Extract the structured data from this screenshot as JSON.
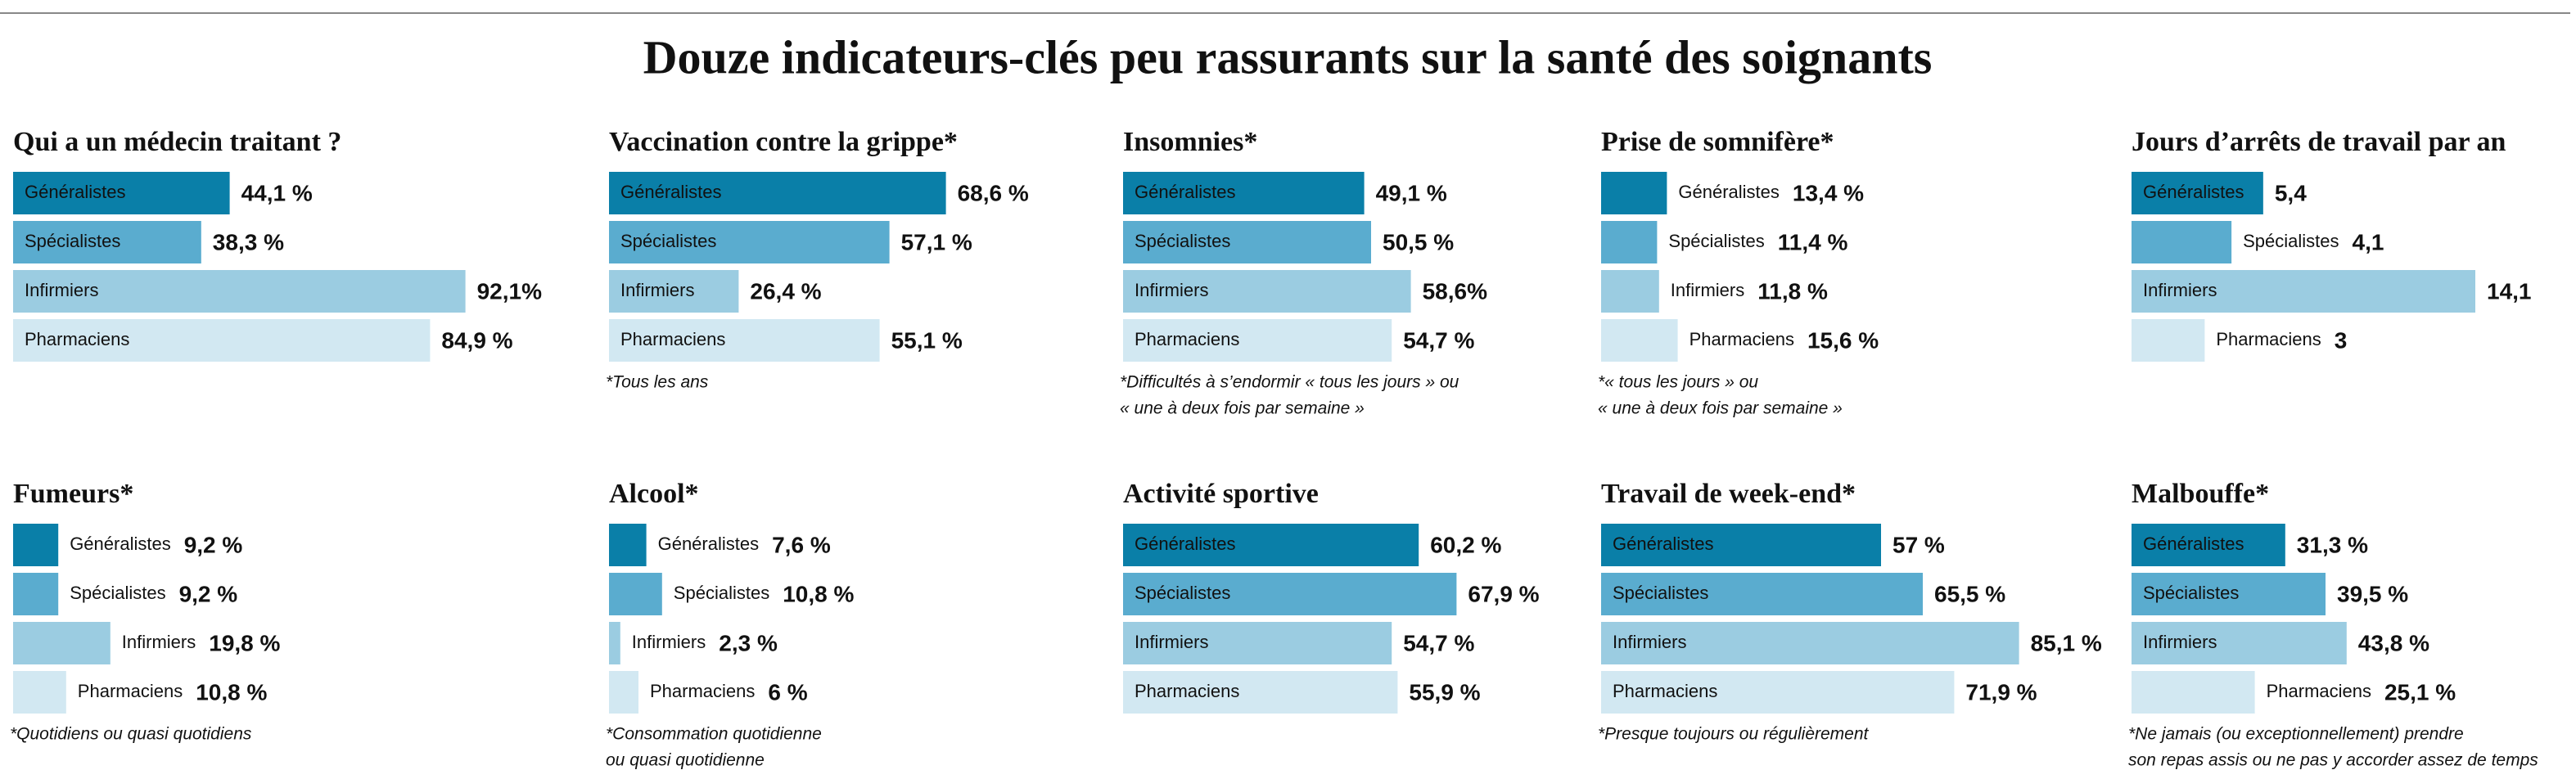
{
  "title": "Douze indicateurs-clés peu rassurants sur la santé des soignants",
  "chart_data": [
    {
      "type": "bar",
      "orientation": "horizontal",
      "title": "Qui a un médecin traitant ?",
      "categories": [
        "Généralistes",
        "Spécialistes",
        "Infirmiers",
        "Pharmaciens"
      ],
      "values": [
        44.1,
        38.3,
        92.1,
        84.9
      ],
      "value_labels": [
        "44,1 %",
        "38,3 %",
        "92,1%",
        "84,9 %"
      ],
      "colors": [
        "#0a7fa8",
        "#5aaccf",
        "#9bcce1",
        "#d2e8f2"
      ]
    },
    {
      "type": "bar",
      "orientation": "horizontal",
      "title": "Vaccination contre la grippe*",
      "categories": [
        "Généralistes",
        "Spécialistes",
        "Infirmiers",
        "Pharmaciens"
      ],
      "values": [
        68.6,
        57.1,
        26.4,
        55.1
      ],
      "value_labels": [
        "68,6 %",
        "57,1 %",
        "26,4 %",
        "55,1 %"
      ],
      "colors": [
        "#0a7fa8",
        "#5aaccf",
        "#9bcce1",
        "#d2e8f2"
      ],
      "note": [
        "*Tous les ans"
      ]
    },
    {
      "type": "bar",
      "orientation": "horizontal",
      "title": "Insomnies*",
      "categories": [
        "Généralistes",
        "Spécialistes",
        "Infirmiers",
        "Pharmaciens"
      ],
      "values": [
        49.1,
        50.5,
        58.6,
        54.7
      ],
      "value_labels": [
        "49,1 %",
        "50,5 %",
        "58,6%",
        "54,7 %"
      ],
      "colors": [
        "#0a7fa8",
        "#5aaccf",
        "#9bcce1",
        "#d2e8f2"
      ],
      "note": [
        "*Difficultés à s’endormir « tous les jours » ou",
        " « une à deux fois par semaine »"
      ]
    },
    {
      "type": "bar",
      "orientation": "horizontal",
      "title": "Prise de somnifère*",
      "categories": [
        "Généralistes",
        "Spécialistes",
        "Infirmiers",
        "Pharmaciens"
      ],
      "values": [
        13.4,
        11.4,
        11.8,
        15.6
      ],
      "value_labels": [
        "13,4 %",
        "11,4 %",
        "11,8 %",
        "15,6 %"
      ],
      "colors": [
        "#0a7fa8",
        "#5aaccf",
        "#9bcce1",
        "#d2e8f2"
      ],
      "note": [
        "*« tous les jours » ou",
        " « une à deux fois par semaine »"
      ]
    },
    {
      "type": "bar",
      "orientation": "horizontal",
      "title": "Jours d’arrêts de travail par an",
      "categories": [
        "Généralistes",
        "Spécialistes",
        "Infirmiers",
        "Pharmaciens"
      ],
      "values": [
        5.4,
        4.1,
        14.1,
        3
      ],
      "value_labels": [
        "5,4",
        "4,1",
        "14,1",
        "3"
      ],
      "colors": [
        "#0a7fa8",
        "#5aaccf",
        "#9bcce1",
        "#d2e8f2"
      ]
    },
    {
      "type": "bar",
      "orientation": "horizontal",
      "title": "Fumeurs*",
      "categories": [
        "Généralistes",
        "Spécialistes",
        "Infirmiers",
        "Pharmaciens"
      ],
      "values": [
        9.2,
        9.2,
        19.8,
        10.8
      ],
      "value_labels": [
        "9,2 %",
        "9,2 %",
        "19,8 %",
        "10,8 %"
      ],
      "colors": [
        "#0a7fa8",
        "#5aaccf",
        "#9bcce1",
        "#d2e8f2"
      ],
      "note": [
        "*Quotidiens ou quasi quotidiens"
      ]
    },
    {
      "type": "bar",
      "orientation": "horizontal",
      "title": "Alcool*",
      "categories": [
        "Généralistes",
        "Spécialistes",
        "Infirmiers",
        "Pharmaciens"
      ],
      "values": [
        7.6,
        10.8,
        2.3,
        6
      ],
      "value_labels": [
        "7,6 %",
        "10,8 %",
        "2,3 %",
        "6 %"
      ],
      "colors": [
        "#0a7fa8",
        "#5aaccf",
        "#9bcce1",
        "#d2e8f2"
      ],
      "note": [
        "*Consommation quotidienne",
        " ou quasi quotidienne"
      ]
    },
    {
      "type": "bar",
      "orientation": "horizontal",
      "title": "Activité sportive",
      "categories": [
        "Généralistes",
        "Spécialistes",
        "Infirmiers",
        "Pharmaciens"
      ],
      "values": [
        60.2,
        67.9,
        54.7,
        55.9
      ],
      "value_labels": [
        "60,2 %",
        "67,9 %",
        "54,7 %",
        "55,9 %"
      ],
      "colors": [
        "#0a7fa8",
        "#5aaccf",
        "#9bcce1",
        "#d2e8f2"
      ]
    },
    {
      "type": "bar",
      "orientation": "horizontal",
      "title": "Travail de week-end*",
      "categories": [
        "Généralistes",
        "Spécialistes",
        "Infirmiers",
        "Pharmaciens"
      ],
      "values": [
        57,
        65.5,
        85.1,
        71.9
      ],
      "value_labels": [
        "57 %",
        "65,5 %",
        "85,1 %",
        "71,9 %"
      ],
      "colors": [
        "#0a7fa8",
        "#5aaccf",
        "#9bcce1",
        "#d2e8f2"
      ],
      "note": [
        "*Presque toujours ou régulièrement"
      ]
    },
    {
      "type": "bar",
      "orientation": "horizontal",
      "title": "Malbouffe*",
      "categories": [
        "Généralistes",
        "Spécialistes",
        "Infirmiers",
        "Pharmaciens"
      ],
      "values": [
        31.3,
        39.5,
        43.8,
        25.1
      ],
      "value_labels": [
        "31,3 %",
        "39,5 %",
        "43,8 %",
        "25,1 %"
      ],
      "colors": [
        "#0a7fa8",
        "#5aaccf",
        "#9bcce1",
        "#d2e8f2"
      ],
      "note": [
        "*Ne jamais (ou exceptionnellement) prendre",
        " son repas assis ou ne pas y accorder assez de temps"
      ]
    }
  ]
}
